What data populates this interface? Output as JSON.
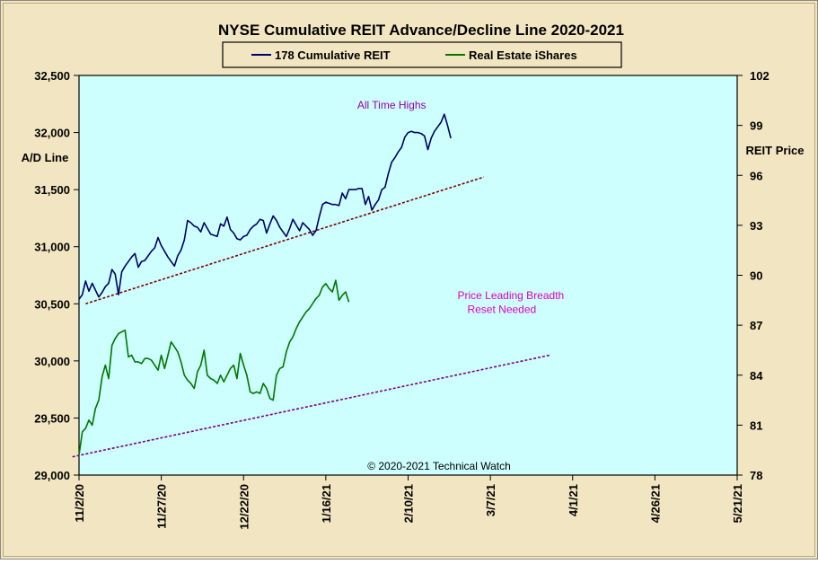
{
  "chart_data": {
    "type": "line",
    "title": "NYSE Cumulative  REIT Advance/Decline  Line  2020-2021",
    "ylabel_left": "A/D Line",
    "ylabel_right": "REIT  Price",
    "copyright": "© 2020-2021  Technical  Watch",
    "background": "#ccfffd",
    "frame_background": "#f2e6c2",
    "y_left": {
      "min": 29000,
      "max": 32500,
      "ticks": [
        29000,
        29500,
        30000,
        30500,
        31000,
        31500,
        32000,
        32500
      ],
      "tick_labels": [
        "29,000",
        "29,500",
        "30,000",
        "30,500",
        "31,000",
        "31,500",
        "32,000",
        "32,500"
      ]
    },
    "y_right": {
      "min": 78,
      "max": 102,
      "ticks": [
        78,
        81,
        84,
        87,
        90,
        93,
        96,
        99,
        102
      ],
      "tick_labels": [
        "78",
        "81",
        "84",
        "87",
        "90",
        "93",
        "96",
        "99",
        "102"
      ]
    },
    "x_axis": {
      "start": "2020-11-02",
      "end": "2021-05-21",
      "ticks": [
        "2020-11-02",
        "2020-11-27",
        "2020-12-22",
        "2021-01-16",
        "2021-02-10",
        "2021-03-07",
        "2021-04-01",
        "2021-04-26",
        "2021-05-21"
      ],
      "tick_labels": [
        "11/2/20",
        "11/27/20",
        "12/22/20",
        "1/16/21",
        "2/10/21",
        "3/7/21",
        "4/1/21",
        "4/26/21",
        "5/21/21"
      ]
    },
    "series": [
      {
        "name": "178 Cumulative REIT",
        "axis": "left",
        "color": "#000066",
        "points": [
          [
            "2020-11-02",
            30540
          ],
          [
            "2020-11-03",
            30580
          ],
          [
            "2020-11-04",
            30700
          ],
          [
            "2020-11-05",
            30610
          ],
          [
            "2020-11-06",
            30680
          ],
          [
            "2020-11-07",
            30620
          ],
          [
            "2020-11-08",
            30560
          ],
          [
            "2020-11-09",
            30600
          ],
          [
            "2020-11-10",
            30650
          ],
          [
            "2020-11-11",
            30680
          ],
          [
            "2020-11-12",
            30800
          ],
          [
            "2020-11-13",
            30760
          ],
          [
            "2020-11-14",
            30580
          ],
          [
            "2020-11-15",
            30780
          ],
          [
            "2020-11-16",
            30830
          ],
          [
            "2020-11-17",
            30870
          ],
          [
            "2020-11-18",
            30910
          ],
          [
            "2020-11-19",
            30940
          ],
          [
            "2020-11-20",
            30820
          ],
          [
            "2020-11-21",
            30870
          ],
          [
            "2020-11-22",
            30880
          ],
          [
            "2020-11-23",
            30920
          ],
          [
            "2020-11-24",
            30960
          ],
          [
            "2020-11-25",
            30990
          ],
          [
            "2020-11-26",
            31080
          ],
          [
            "2020-11-27",
            31010
          ],
          [
            "2020-11-28",
            30960
          ],
          [
            "2020-11-29",
            30910
          ],
          [
            "2020-11-30",
            30870
          ],
          [
            "2020-12-01",
            30830
          ],
          [
            "2020-12-02",
            30920
          ],
          [
            "2020-12-03",
            30970
          ],
          [
            "2020-12-04",
            31060
          ],
          [
            "2020-12-05",
            31230
          ],
          [
            "2020-12-06",
            31210
          ],
          [
            "2020-12-07",
            31180
          ],
          [
            "2020-12-08",
            31170
          ],
          [
            "2020-12-09",
            31130
          ],
          [
            "2020-12-10",
            31210
          ],
          [
            "2020-12-11",
            31160
          ],
          [
            "2020-12-12",
            31110
          ],
          [
            "2020-12-13",
            31100
          ],
          [
            "2020-12-14",
            31090
          ],
          [
            "2020-12-15",
            31200
          ],
          [
            "2020-12-16",
            31180
          ],
          [
            "2020-12-17",
            31260
          ],
          [
            "2020-12-18",
            31150
          ],
          [
            "2020-12-19",
            31120
          ],
          [
            "2020-12-20",
            31070
          ],
          [
            "2020-12-21",
            31060
          ],
          [
            "2020-12-22",
            31090
          ],
          [
            "2020-12-23",
            31100
          ],
          [
            "2020-12-24",
            31150
          ],
          [
            "2020-12-25",
            31180
          ],
          [
            "2020-12-26",
            31200
          ],
          [
            "2020-12-27",
            31240
          ],
          [
            "2020-12-28",
            31230
          ],
          [
            "2020-12-29",
            31120
          ],
          [
            "2020-12-30",
            31200
          ],
          [
            "2020-12-31",
            31270
          ],
          [
            "2021-01-01",
            31230
          ],
          [
            "2021-01-02",
            31170
          ],
          [
            "2021-01-03",
            31130
          ],
          [
            "2021-01-04",
            31090
          ],
          [
            "2021-01-05",
            31160
          ],
          [
            "2021-01-06",
            31240
          ],
          [
            "2021-01-07",
            31190
          ],
          [
            "2021-01-08",
            31140
          ],
          [
            "2021-01-09",
            31210
          ],
          [
            "2021-01-10",
            31180
          ],
          [
            "2021-01-11",
            31150
          ],
          [
            "2021-01-12",
            31100
          ],
          [
            "2021-01-13",
            31140
          ],
          [
            "2021-01-14",
            31260
          ],
          [
            "2021-01-15",
            31370
          ],
          [
            "2021-01-16",
            31390
          ],
          [
            "2021-01-17",
            31380
          ],
          [
            "2021-01-18",
            31370
          ],
          [
            "2021-01-19",
            31370
          ],
          [
            "2021-01-20",
            31360
          ],
          [
            "2021-01-21",
            31470
          ],
          [
            "2021-01-22",
            31420
          ],
          [
            "2021-01-23",
            31500
          ],
          [
            "2021-01-24",
            31500
          ],
          [
            "2021-01-25",
            31500
          ],
          [
            "2021-01-26",
            31510
          ],
          [
            "2021-01-27",
            31510
          ],
          [
            "2021-01-28",
            31370
          ],
          [
            "2021-01-29",
            31440
          ],
          [
            "2021-01-30",
            31320
          ],
          [
            "2021-01-31",
            31370
          ],
          [
            "2021-02-01",
            31410
          ],
          [
            "2021-02-02",
            31500
          ],
          [
            "2021-02-03",
            31520
          ],
          [
            "2021-02-04",
            31640
          ],
          [
            "2021-02-05",
            31740
          ],
          [
            "2021-02-06",
            31780
          ],
          [
            "2021-02-07",
            31830
          ],
          [
            "2021-02-08",
            31870
          ],
          [
            "2021-02-09",
            31960
          ],
          [
            "2021-02-10",
            32000
          ],
          [
            "2021-02-11",
            32010
          ],
          [
            "2021-02-12",
            32000
          ],
          [
            "2021-02-13",
            32000
          ],
          [
            "2021-02-14",
            31990
          ],
          [
            "2021-02-15",
            31970
          ],
          [
            "2021-02-16",
            31850
          ],
          [
            "2021-02-17",
            31950
          ],
          [
            "2021-02-18",
            32010
          ],
          [
            "2021-02-19",
            32050
          ],
          [
            "2021-02-20",
            32090
          ],
          [
            "2021-02-21",
            32160
          ],
          [
            "2021-02-22",
            32060
          ],
          [
            "2021-02-23",
            31950
          ]
        ]
      },
      {
        "name": "Real Estate iShares",
        "axis": "right",
        "color": "#007700",
        "points": [
          [
            "2020-11-02",
            79.2
          ],
          [
            "2020-11-03",
            80.6
          ],
          [
            "2020-11-04",
            80.8
          ],
          [
            "2020-11-05",
            81.3
          ],
          [
            "2020-11-06",
            81.0
          ],
          [
            "2020-11-07",
            82.0
          ],
          [
            "2020-11-08",
            82.5
          ],
          [
            "2020-11-09",
            83.9
          ],
          [
            "2020-11-10",
            84.6
          ],
          [
            "2020-11-11",
            83.8
          ],
          [
            "2020-11-12",
            85.8
          ],
          [
            "2020-11-13",
            86.2
          ],
          [
            "2020-11-14",
            86.5
          ],
          [
            "2020-11-15",
            86.6
          ],
          [
            "2020-11-16",
            86.7
          ],
          [
            "2020-11-17",
            85.1
          ],
          [
            "2020-11-18",
            85.2
          ],
          [
            "2020-11-19",
            84.8
          ],
          [
            "2020-11-20",
            84.8
          ],
          [
            "2020-11-21",
            84.7
          ],
          [
            "2020-11-22",
            85.0
          ],
          [
            "2020-11-23",
            85.0
          ],
          [
            "2020-11-24",
            84.9
          ],
          [
            "2020-11-25",
            84.6
          ],
          [
            "2020-11-26",
            84.3
          ],
          [
            "2020-11-27",
            85.2
          ],
          [
            "2020-11-28",
            84.4
          ],
          [
            "2020-11-29",
            85.2
          ],
          [
            "2020-11-30",
            86.0
          ],
          [
            "2020-12-01",
            85.7
          ],
          [
            "2020-12-02",
            85.4
          ],
          [
            "2020-12-03",
            84.8
          ],
          [
            "2020-12-04",
            84.0
          ],
          [
            "2020-12-05",
            83.7
          ],
          [
            "2020-12-06",
            83.5
          ],
          [
            "2020-12-07",
            83.2
          ],
          [
            "2020-12-08",
            84.2
          ],
          [
            "2020-12-09",
            84.6
          ],
          [
            "2020-12-10",
            85.5
          ],
          [
            "2020-12-11",
            84.0
          ],
          [
            "2020-12-12",
            83.8
          ],
          [
            "2020-12-13",
            83.7
          ],
          [
            "2020-12-14",
            83.5
          ],
          [
            "2020-12-15",
            84.0
          ],
          [
            "2020-12-16",
            83.6
          ],
          [
            "2020-12-17",
            84.0
          ],
          [
            "2020-12-18",
            84.4
          ],
          [
            "2020-12-19",
            84.6
          ],
          [
            "2020-12-20",
            83.8
          ],
          [
            "2020-12-21",
            85.3
          ],
          [
            "2020-12-22",
            84.6
          ],
          [
            "2020-12-23",
            84.0
          ],
          [
            "2020-12-24",
            83.0
          ],
          [
            "2020-12-25",
            82.9
          ],
          [
            "2020-12-26",
            83.0
          ],
          [
            "2020-12-27",
            82.9
          ],
          [
            "2020-12-28",
            83.5
          ],
          [
            "2020-12-29",
            83.2
          ],
          [
            "2020-12-30",
            82.6
          ],
          [
            "2020-12-31",
            82.5
          ],
          [
            "2021-01-01",
            84.0
          ],
          [
            "2021-01-02",
            84.4
          ],
          [
            "2021-01-03",
            84.5
          ],
          [
            "2021-01-04",
            85.4
          ],
          [
            "2021-01-05",
            86.0
          ],
          [
            "2021-01-06",
            86.3
          ],
          [
            "2021-01-07",
            86.8
          ],
          [
            "2021-01-08",
            87.2
          ],
          [
            "2021-01-09",
            87.5
          ],
          [
            "2021-01-10",
            87.8
          ],
          [
            "2021-01-11",
            88.0
          ],
          [
            "2021-01-12",
            88.3
          ],
          [
            "2021-01-13",
            88.6
          ],
          [
            "2021-01-14",
            88.8
          ],
          [
            "2021-01-15",
            89.3
          ],
          [
            "2021-01-16",
            89.5
          ],
          [
            "2021-01-17",
            89.2
          ],
          [
            "2021-01-18",
            89.0
          ],
          [
            "2021-01-19",
            89.7
          ],
          [
            "2021-01-20",
            88.5
          ],
          [
            "2021-01-21",
            88.8
          ],
          [
            "2021-01-22",
            89.0
          ],
          [
            "2021-01-23",
            88.4
          ]
        ]
      }
    ],
    "legend": {
      "position": "top-center",
      "entries": [
        {
          "label": "178 Cumulative REIT",
          "color": "#000066"
        },
        {
          "label": "Real Estate iShares",
          "color": "#007700"
        }
      ]
    },
    "trendlines": [
      {
        "name": "ad-support-trendline",
        "color": "#800000",
        "from": [
          "2020-11-04",
          30500
        ],
        "to": [
          "2021-03-05",
          31610
        ]
      },
      {
        "name": "price-support-trendline",
        "color": "#800080",
        "from": [
          "2020-10-31",
          29160
        ],
        "to": [
          "2021-03-25",
          30050
        ]
      }
    ],
    "annotations": [
      {
        "name": "all-time-highs-label",
        "text": "All Time Highs",
        "color": "#9900aa",
        "at": [
          "2021-02-05",
          32210
        ],
        "anchor": "middle"
      },
      {
        "name": "price-leading-breadth-label",
        "text": "Price Leading  Breadth",
        "color": "#e000c0",
        "at": [
          "2021-02-25",
          30540
        ],
        "anchor": "start"
      },
      {
        "name": "reset-needed-label",
        "text": "Reset Needed",
        "color": "#e000c0",
        "at": [
          "2021-02-28",
          30420
        ],
        "anchor": "start"
      }
    ]
  }
}
